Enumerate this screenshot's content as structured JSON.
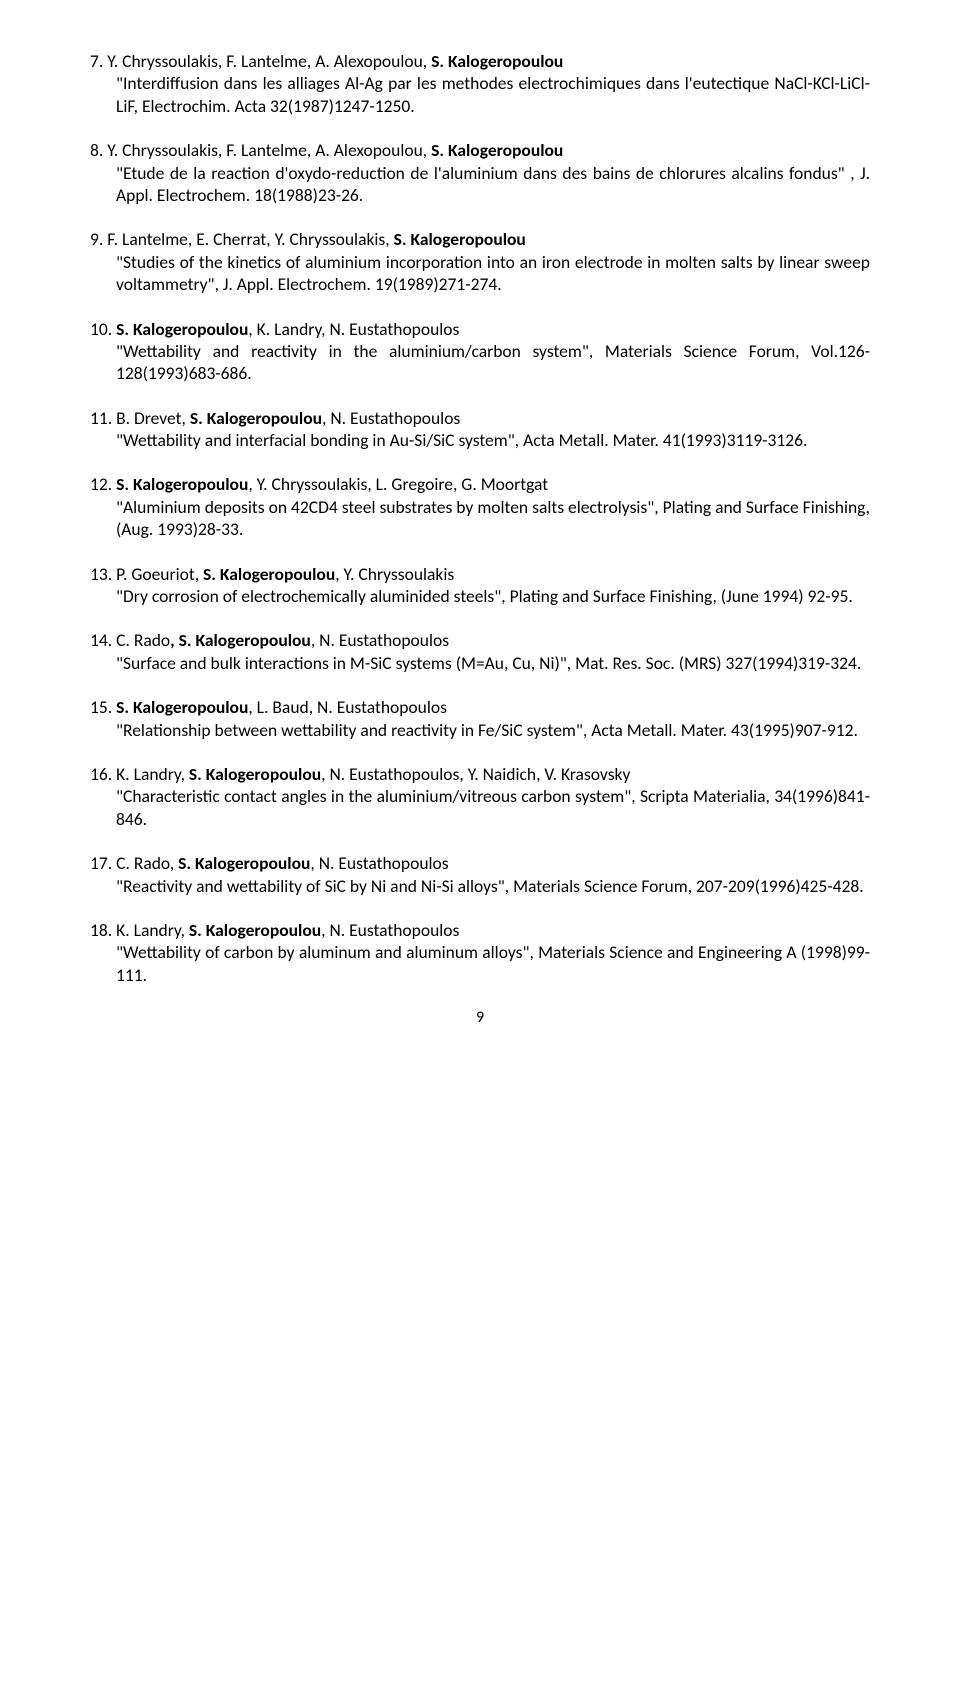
{
  "refs": [
    {
      "num": "7.",
      "authors_pre": " Y. Chryssoulakis, F. Lantelme, A. Alexopoulou, ",
      "authors_bold": "S. Kalogeropoulou",
      "authors_post": "",
      "body": "\"Interdiffusion dans les alliages Al-Ag par les methodes electrochimiques dans l'eutectique NaCl-KCl-LiCl-LiF, Electrochim. Acta 32(1987)1247-1250."
    },
    {
      "num": "8.",
      "authors_pre": " Y. Chryssoulakis, F. Lantelme, A. Alexopoulou, ",
      "authors_bold": "S. Kalogeropoulou",
      "authors_post": "",
      "body": "\"Etude de la reaction d'oxydo-reduction de l'aluminium dans des bains de chlorures alcalins fondus\" , J. Appl. Electrochem. 18(1988)23-26."
    },
    {
      "num": "9.",
      "authors_pre": "  F. Lantelme, E. Cherrat, Y. Chryssoulakis, ",
      "authors_bold": "S. Kalogeropoulou",
      "authors_post": "",
      "body": "\"Studies of the kinetics of aluminium incorporation into an iron electrode in molten salts by linear sweep voltammetry\", J. Appl. Electrochem. 19(1989)271-274."
    },
    {
      "num": "10.",
      "authors_pre": " ",
      "authors_bold": "S. Kalogeropoulou",
      "authors_post": ", K. Landry, N. Eustathopoulos",
      "body": "\"Wettability and reactivity in the aluminium/carbon system\", Materials Science Forum, Vol.126-128(1993)683-686."
    },
    {
      "num": "11.",
      "authors_pre": " B. Drevet, ",
      "authors_bold": "S. Kalogeropoulou",
      "authors_post": ", N. Eustathopoulos",
      "body": "\"Wettability and interfacial bonding in Au-Si/SiC system\", Acta Metall. Mater. 41(1993)3119-3126."
    },
    {
      "num": "12.",
      "authors_pre": " ",
      "authors_bold": "S. Kalogeropoulou",
      "authors_post": ", Y. Chryssoulakis, L. Gregoire, G. Moortgat",
      "body": "\"Aluminium deposits on 42CD4 steel substrates by molten salts electrolysis\", Plating and Surface Finishing, (Aug. 1993)28-33."
    },
    {
      "num": "13.",
      "authors_pre": " P. Goeuriot, ",
      "authors_bold": "S. Kalogeropoulou",
      "authors_post": ", Y. Chryssoulakis",
      "body": "\"Dry corrosion of electrochemically aluminided steels\", Plating and Surface Finishing, (June 1994) 92-95."
    },
    {
      "num": "14.",
      "authors_pre": " C. Rado",
      "authors_bold": ", S. Kalogeropoulou",
      "authors_post": ", N. Eustathopoulos",
      "body": "\"Surface and bulk interactions in M-SiC systems (M=Au, Cu, Ni)\", Mat. Res. Soc. (MRS) 327(1994)319-324."
    },
    {
      "num": "15.",
      "authors_pre": " ",
      "authors_bold": "S. Kalogeropoulou",
      "authors_post": ", L. Baud, N. Eustathopoulos",
      "body": "\"Relationship between wettability and reactivity in Fe/SiC system\", Acta Metall. Mater. 43(1995)907-912."
    },
    {
      "num": "16.",
      "authors_pre": " K. Landry, ",
      "authors_bold": "S. Kalogeropoulou",
      "authors_post": ", N. Eustathopoulos, Y. Naidich, V. Krasovsky",
      "body": "\"Characteristic contact angles in the aluminium/vitreous carbon system\", Scripta Materialia, 34(1996)841-846."
    },
    {
      "num": "17.",
      "authors_pre": "  C. Rado, ",
      "authors_bold": "S. Kalogeropoulou",
      "authors_post": ", N. Eustathopoulos",
      "body": "\"Reactivity and wettability of SiC by Ni and Ni-Si alloys\", Materials Science Forum, 207-209(1996)425-428."
    },
    {
      "num": "18.",
      "authors_pre": " K. Landry, ",
      "authors_bold": "S. Kalogeropoulou",
      "authors_post": ", N. Eustathopoulos",
      "body": "\"Wettability of carbon by aluminum and aluminum alloys\", Materials Science and Engineering A (1998)99-111."
    }
  ],
  "pagenum": "9"
}
